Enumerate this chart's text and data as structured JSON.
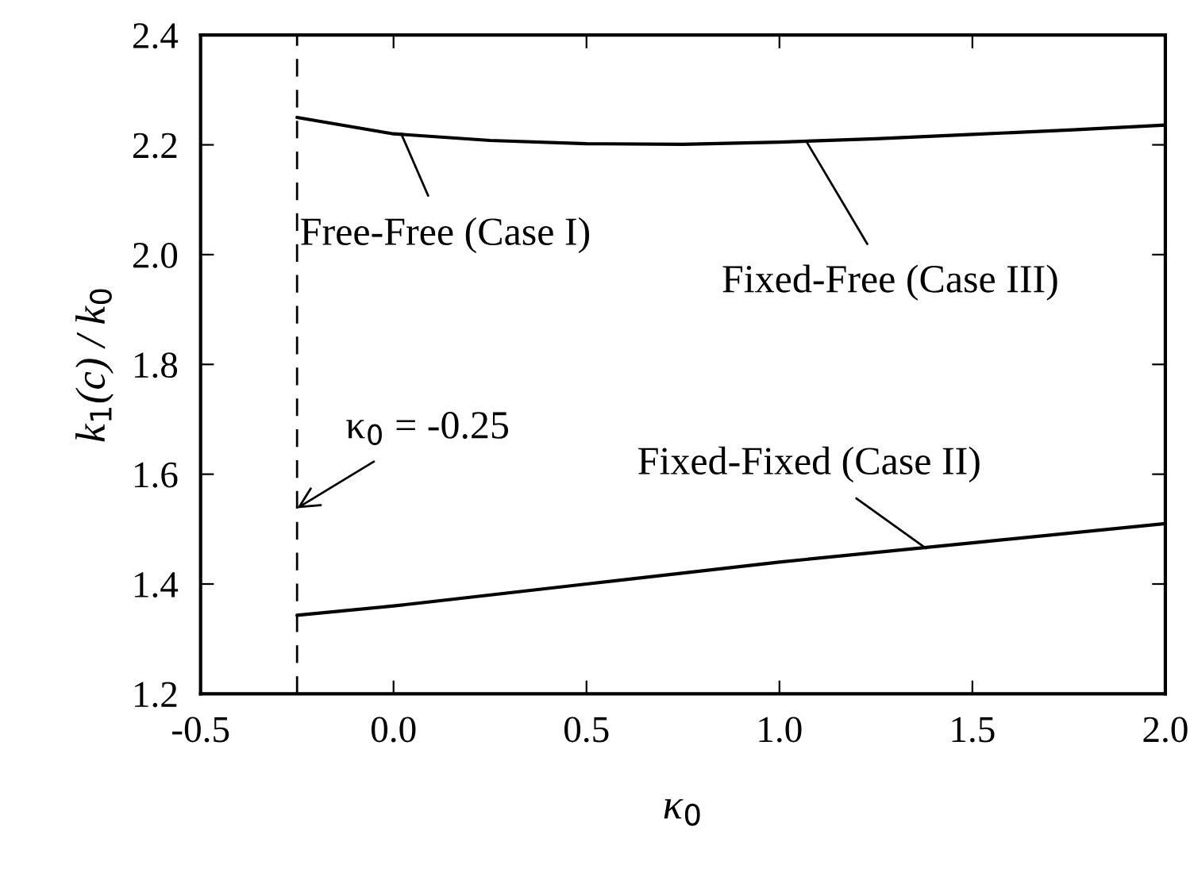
{
  "chart_data": {
    "type": "line",
    "xlabel": "κ$_{0}$",
    "ylabel": "k$_{1}$(c) / k$_{0}$",
    "series": [
      {
        "color": "#000000",
        "x": [
          -0.25,
          0.0,
          0.25,
          0.5,
          0.75,
          1.0,
          1.25,
          1.5,
          1.75,
          2.0
        ],
        "values": [
          2.25,
          2.22,
          2.208,
          2.202,
          2.201,
          2.205,
          2.211,
          2.219,
          2.227,
          2.236
        ]
      },
      {
        "color": "#000000",
        "x": [
          -0.25,
          0.0,
          0.5,
          1.0,
          1.5,
          2.0
        ],
        "values": [
          1.343,
          1.36,
          1.4,
          1.44,
          1.475,
          1.51
        ]
      }
    ],
    "xlim": [
      -0.5,
      2.0
    ],
    "xticks": [
      -0.5,
      {
        "value": 0,
        "label": "0.0"
      },
      0.5,
      {
        "value": 1,
        "label": "1.0"
      },
      1.5,
      {
        "value": 2,
        "label": "2.0"
      }
    ],
    "ylim": [
      1.2,
      2.4
    ],
    "yticks": [
      1.2,
      1.4,
      1.6,
      1.8,
      {
        "value": 2,
        "label": "2.0"
      },
      2.2,
      2.4
    ],
    "ref_lines": [
      {
        "axis": "x",
        "value": -0.25,
        "line_style": "dashed",
        "color": "#000000"
      }
    ],
    "annotations": [
      {
        "text": "Free-Free (Case I)",
        "x": 0.02,
        "y": 2.22
      },
      {
        "text": "Fixed-Free (Case III)",
        "x": 1.07,
        "y": 2.206
      },
      {
        "text": "Fixed-Fixed (Case II)",
        "x": 1.38,
        "y": 1.465
      },
      {
        "text": "κ$_{0}$ = -0.25",
        "x": -0.25,
        "y": 1.538
      }
    ],
    "grid": false,
    "legend": false,
    "marker": "none",
    "line_style": "solid"
  }
}
